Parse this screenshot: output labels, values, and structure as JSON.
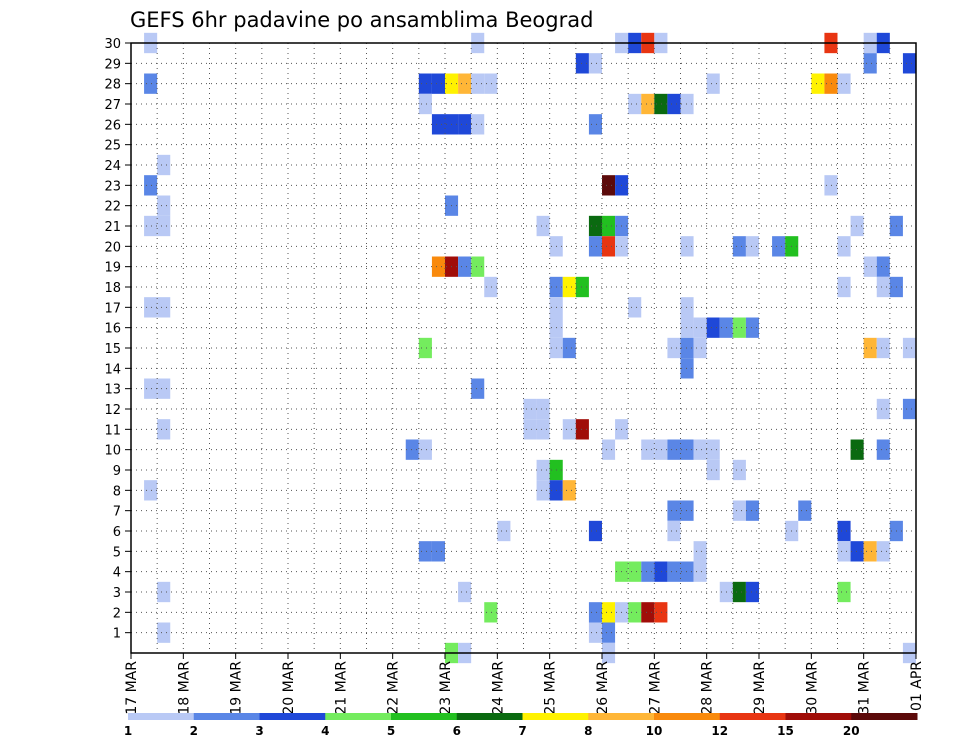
{
  "chart_data": {
    "type": "heatmap",
    "title": "GEFS 6hr padavine po ansamblima Beograd",
    "xlabel": "",
    "ylabel": "",
    "grid": true,
    "y_members": [
      1,
      2,
      3,
      4,
      5,
      6,
      7,
      8,
      9,
      10,
      11,
      12,
      13,
      14,
      15,
      16,
      17,
      18,
      19,
      20,
      21,
      22,
      23,
      24,
      25,
      26,
      27,
      28,
      29,
      30
    ],
    "ylim": [
      0,
      30
    ],
    "x_tick_labels": [
      "17 MAR",
      "18 MAR",
      "19 MAR",
      "20 MAR",
      "21 MAR",
      "22 MAR",
      "23 MAR",
      "24 MAR",
      "25 MAR",
      "26 MAR",
      "27 MAR",
      "28 MAR",
      "29 MAR",
      "30 MAR",
      "31 MAR",
      "01 APR"
    ],
    "x_unit": "day (0 = 17 MAR 00Z), 6-hourly steps",
    "xlim": [
      0,
      15
    ],
    "legend": {
      "placement": "bottom",
      "labels": [
        "1",
        "2",
        "3",
        "4",
        "5",
        "6",
        "7",
        "8",
        "10",
        "12",
        "15",
        "20"
      ],
      "colors": [
        "#b9c9f5",
        "#5a86e6",
        "#1f48d8",
        "#74ec5e",
        "#22c020",
        "#0a6a10",
        "#fff200",
        "#ffb637",
        "#f98a0c",
        "#e83512",
        "#a00d08",
        "#5c0a0a"
      ]
    },
    "cells_note": "each cell: [day_offset_start, member, color_class(1-12)]",
    "cells": [
      [
        0.25,
        30,
        1
      ],
      [
        6.5,
        30,
        1
      ],
      [
        9.25,
        30,
        1
      ],
      [
        9.5,
        30,
        3
      ],
      [
        9.75,
        30,
        10
      ],
      [
        10.0,
        30,
        1
      ],
      [
        13.25,
        30,
        10
      ],
      [
        14.0,
        30,
        1
      ],
      [
        14.25,
        30,
        3
      ],
      [
        14.0,
        29,
        2
      ],
      [
        14.75,
        29,
        3
      ],
      [
        8.5,
        29,
        3
      ],
      [
        8.75,
        29,
        1
      ],
      [
        0.25,
        28,
        2
      ],
      [
        5.5,
        28,
        3
      ],
      [
        5.75,
        28,
        3
      ],
      [
        6.0,
        28,
        7
      ],
      [
        6.25,
        28,
        8
      ],
      [
        6.5,
        28,
        1
      ],
      [
        6.75,
        28,
        1
      ],
      [
        11.0,
        28,
        1
      ],
      [
        13.0,
        28,
        7
      ],
      [
        13.25,
        28,
        9
      ],
      [
        13.5,
        28,
        1
      ],
      [
        5.5,
        27,
        1
      ],
      [
        9.5,
        27,
        1
      ],
      [
        9.75,
        27,
        8
      ],
      [
        10.0,
        27,
        6
      ],
      [
        10.25,
        27,
        3
      ],
      [
        10.5,
        27,
        1
      ],
      [
        5.75,
        26,
        3
      ],
      [
        6.0,
        26,
        3
      ],
      [
        6.25,
        26,
        3
      ],
      [
        6.5,
        26,
        1
      ],
      [
        8.75,
        26,
        2
      ],
      [
        0.5,
        24,
        1
      ],
      [
        0.25,
        23,
        2
      ],
      [
        9.0,
        23,
        12
      ],
      [
        9.25,
        23,
        3
      ],
      [
        13.25,
        23,
        1
      ],
      [
        0.5,
        22,
        1
      ],
      [
        6.0,
        22,
        2
      ],
      [
        0.25,
        21,
        1
      ],
      [
        0.5,
        21,
        1
      ],
      [
        7.75,
        21,
        1
      ],
      [
        8.75,
        21,
        6
      ],
      [
        9.0,
        21,
        5
      ],
      [
        9.25,
        21,
        2
      ],
      [
        13.75,
        21,
        1
      ],
      [
        14.5,
        21,
        2
      ],
      [
        8.0,
        20,
        1
      ],
      [
        8.75,
        20,
        2
      ],
      [
        9.0,
        20,
        10
      ],
      [
        9.25,
        20,
        1
      ],
      [
        10.5,
        20,
        1
      ],
      [
        11.5,
        20,
        2
      ],
      [
        11.75,
        20,
        1
      ],
      [
        12.25,
        20,
        2
      ],
      [
        12.5,
        20,
        5
      ],
      [
        13.5,
        20,
        1
      ],
      [
        5.75,
        19,
        9
      ],
      [
        6.0,
        19,
        11
      ],
      [
        6.25,
        19,
        2
      ],
      [
        6.5,
        19,
        4
      ],
      [
        14.0,
        19,
        1
      ],
      [
        14.25,
        19,
        2
      ],
      [
        6.75,
        18,
        1
      ],
      [
        8.0,
        18,
        2
      ],
      [
        8.25,
        18,
        7
      ],
      [
        8.5,
        18,
        5
      ],
      [
        13.5,
        18,
        1
      ],
      [
        14.25,
        18,
        1
      ],
      [
        14.5,
        18,
        2
      ],
      [
        0.25,
        17,
        1
      ],
      [
        0.5,
        17,
        1
      ],
      [
        8.0,
        17,
        1
      ],
      [
        9.5,
        17,
        1
      ],
      [
        10.5,
        17,
        1
      ],
      [
        8.0,
        16,
        1
      ],
      [
        10.5,
        16,
        1
      ],
      [
        10.75,
        16,
        1
      ],
      [
        11.0,
        16,
        3
      ],
      [
        11.25,
        16,
        2
      ],
      [
        11.5,
        16,
        4
      ],
      [
        11.75,
        16,
        2
      ],
      [
        5.5,
        15,
        4
      ],
      [
        8.0,
        15,
        1
      ],
      [
        8.25,
        15,
        2
      ],
      [
        10.25,
        15,
        1
      ],
      [
        10.5,
        15,
        2
      ],
      [
        10.75,
        15,
        1
      ],
      [
        14.75,
        15,
        1
      ],
      [
        14.0,
        15,
        8
      ],
      [
        14.25,
        15,
        1
      ],
      [
        10.5,
        14,
        2
      ],
      [
        0.25,
        13,
        1
      ],
      [
        0.5,
        13,
        1
      ],
      [
        6.5,
        13,
        2
      ],
      [
        7.5,
        12,
        1
      ],
      [
        7.75,
        12,
        1
      ],
      [
        14.25,
        12,
        1
      ],
      [
        14.75,
        12,
        2
      ],
      [
        0.5,
        11,
        1
      ],
      [
        7.5,
        11,
        1
      ],
      [
        7.75,
        11,
        1
      ],
      [
        8.25,
        11,
        1
      ],
      [
        8.5,
        11,
        11
      ],
      [
        9.25,
        11,
        1
      ],
      [
        5.25,
        10,
        2
      ],
      [
        5.5,
        10,
        1
      ],
      [
        9.0,
        10,
        1
      ],
      [
        9.75,
        10,
        1
      ],
      [
        10.0,
        10,
        1
      ],
      [
        10.25,
        10,
        2
      ],
      [
        10.5,
        10,
        2
      ],
      [
        10.75,
        10,
        1
      ],
      [
        11.0,
        10,
        1
      ],
      [
        13.75,
        10,
        6
      ],
      [
        14.25,
        10,
        2
      ],
      [
        7.75,
        9,
        1
      ],
      [
        8.0,
        9,
        5
      ],
      [
        11.0,
        9,
        1
      ],
      [
        11.5,
        9,
        1
      ],
      [
        0.25,
        8,
        1
      ],
      [
        7.75,
        8,
        1
      ],
      [
        8.0,
        8,
        3
      ],
      [
        8.25,
        8,
        8
      ],
      [
        10.25,
        7,
        2
      ],
      [
        10.5,
        7,
        2
      ],
      [
        11.5,
        7,
        1
      ],
      [
        11.75,
        7,
        2
      ],
      [
        12.75,
        7,
        2
      ],
      [
        7.0,
        6,
        1
      ],
      [
        8.75,
        6,
        3
      ],
      [
        10.25,
        6,
        1
      ],
      [
        12.5,
        6,
        1
      ],
      [
        13.5,
        6,
        3
      ],
      [
        14.5,
        6,
        2
      ],
      [
        5.5,
        5,
        2
      ],
      [
        5.75,
        5,
        2
      ],
      [
        10.75,
        5,
        1
      ],
      [
        13.5,
        5,
        1
      ],
      [
        13.75,
        5,
        3
      ],
      [
        14.0,
        5,
        8
      ],
      [
        14.25,
        5,
        1
      ],
      [
        9.25,
        4,
        4
      ],
      [
        9.5,
        4,
        4
      ],
      [
        9.75,
        4,
        2
      ],
      [
        10.0,
        4,
        3
      ],
      [
        10.25,
        4,
        2
      ],
      [
        10.5,
        4,
        2
      ],
      [
        10.75,
        4,
        1
      ],
      [
        0.5,
        3,
        1
      ],
      [
        6.25,
        3,
        1
      ],
      [
        11.25,
        3,
        1
      ],
      [
        11.5,
        3,
        6
      ],
      [
        11.75,
        3,
        3
      ],
      [
        13.5,
        3,
        4
      ],
      [
        6.75,
        2,
        4
      ],
      [
        8.75,
        2,
        2
      ],
      [
        9.0,
        2,
        7
      ],
      [
        9.25,
        2,
        1
      ],
      [
        9.5,
        2,
        4
      ],
      [
        9.75,
        2,
        11
      ],
      [
        10.0,
        2,
        10
      ],
      [
        0.5,
        1,
        1
      ],
      [
        8.75,
        1,
        1
      ],
      [
        9.0,
        1,
        2
      ],
      [
        6.0,
        0,
        4
      ],
      [
        6.25,
        0,
        1
      ],
      [
        9.0,
        0,
        1
      ],
      [
        14.75,
        0,
        1
      ]
    ]
  }
}
